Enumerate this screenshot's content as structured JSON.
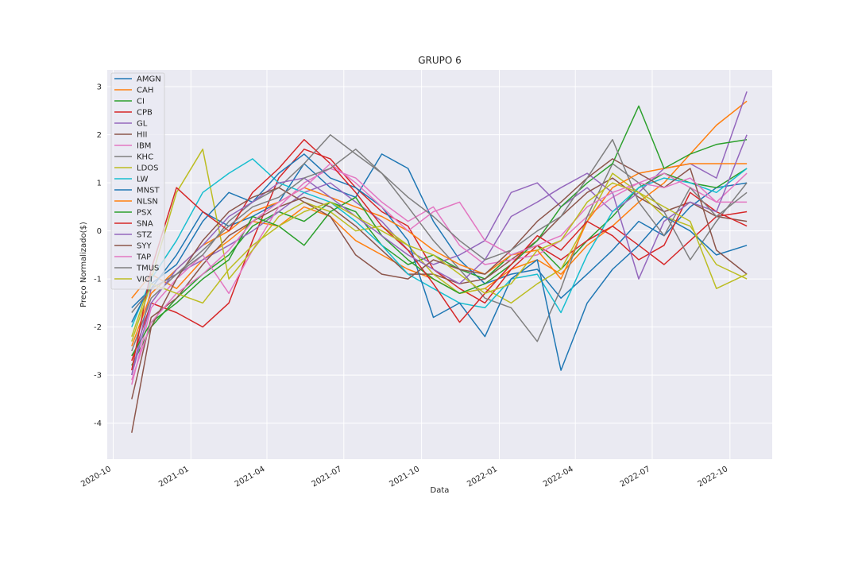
{
  "chart_data": {
    "type": "line",
    "title": "GRUPO 6",
    "xlabel": "Data",
    "ylabel": "Preço Normalizado($)",
    "xlim": [
      "2020-09-24",
      "2022-11-20"
    ],
    "ylim": [
      -4.75,
      3.35
    ],
    "x_ticks": [
      "2020-10",
      "2021-01",
      "2021-04",
      "2021-07",
      "2021-10",
      "2022-01",
      "2022-04",
      "2022-07",
      "2022-10"
    ],
    "x_tick_dates": [
      "2020-10-01",
      "2021-01-01",
      "2021-04-01",
      "2021-07-01",
      "2021-10-01",
      "2022-01-01",
      "2022-04-01",
      "2022-07-01",
      "2022-10-01"
    ],
    "y_ticks": [
      -4,
      -3,
      -2,
      -1,
      0,
      1,
      2,
      3
    ],
    "grid": true,
    "legend_position": "upper-left",
    "style": {
      "background": "#eaeaf2",
      "grid_color": "#ffffff"
    },
    "x": [
      "2020-10-23",
      "2020-11-15",
      "2020-12-15",
      "2021-01-15",
      "2021-02-15",
      "2021-03-15",
      "2021-04-15",
      "2021-05-15",
      "2021-06-15",
      "2021-07-15",
      "2021-08-15",
      "2021-09-15",
      "2021-10-15",
      "2021-11-15",
      "2021-12-15",
      "2022-01-15",
      "2022-02-15",
      "2022-03-15",
      "2022-04-15",
      "2022-05-15",
      "2022-06-15",
      "2022-07-15",
      "2022-08-15",
      "2022-09-15",
      "2022-10-21"
    ],
    "series": [
      {
        "name": "AMGN",
        "color": "#1f77b4",
        "values": [
          -1.6,
          -1.2,
          -0.5,
          0.4,
          0.1,
          0.3,
          0.6,
          1.4,
          0.9,
          0.7,
          1.6,
          1.3,
          0.2,
          -0.6,
          -1.1,
          -0.9,
          -0.8,
          -1.4,
          -0.9,
          -0.4,
          0.2,
          -0.1,
          0.5,
          0.9,
          1.0
        ]
      },
      {
        "name": "CAH",
        "color": "#ff7f0e",
        "values": [
          -1.4,
          -0.9,
          -1.2,
          -0.6,
          -0.2,
          0.2,
          0.1,
          0.5,
          0.3,
          -0.2,
          -0.5,
          -0.8,
          -1.0,
          -1.3,
          -1.2,
          -0.8,
          -0.6,
          -0.9,
          -0.3,
          0.1,
          0.6,
          1.0,
          1.6,
          2.2,
          2.7
        ]
      },
      {
        "name": "CI",
        "color": "#2ca02c",
        "values": [
          -2.8,
          -2.0,
          -1.4,
          -0.9,
          -0.5,
          0.1,
          0.4,
          0.2,
          0.6,
          0.4,
          -0.3,
          -0.7,
          -0.5,
          -0.8,
          -1.0,
          -0.5,
          -0.3,
          -0.8,
          -0.2,
          0.3,
          0.9,
          1.2,
          1.0,
          0.9,
          1.3
        ]
      },
      {
        "name": "CPB",
        "color": "#d62728",
        "values": [
          -2.7,
          -1.5,
          -1.7,
          -2.0,
          -1.5,
          -0.2,
          1.1,
          1.7,
          1.5,
          0.9,
          0.4,
          0.1,
          -0.8,
          -1.2,
          -1.5,
          -0.8,
          -0.3,
          -0.6,
          -0.2,
          0.1,
          -0.3,
          -0.7,
          -0.2,
          0.3,
          0.4
        ]
      },
      {
        "name": "GL",
        "color": "#9467bd",
        "values": [
          -3.0,
          -1.2,
          -0.9,
          -0.6,
          -0.3,
          0.0,
          0.4,
          0.8,
          1.0,
          0.6,
          0.2,
          -0.4,
          -0.7,
          -0.5,
          -0.2,
          0.8,
          1.0,
          0.5,
          0.9,
          0.4,
          0.8,
          1.3,
          1.4,
          1.1,
          2.9
        ]
      },
      {
        "name": "HII",
        "color": "#8c564b",
        "values": [
          -3.5,
          -1.8,
          -1.4,
          -0.7,
          -0.1,
          0.2,
          0.5,
          0.7,
          0.5,
          0.1,
          -0.4,
          -0.9,
          -0.9,
          -1.1,
          -1.0,
          -0.6,
          -0.2,
          0.3,
          0.8,
          1.1,
          0.7,
          0.4,
          0.6,
          0.3,
          0.2
        ]
      },
      {
        "name": "IBM",
        "color": "#e377c2",
        "values": [
          -3.2,
          -1.6,
          -1.0,
          -0.5,
          -1.3,
          -0.4,
          0.5,
          1.0,
          1.3,
          1.1,
          0.6,
          0.2,
          0.5,
          -0.3,
          -0.7,
          -0.6,
          -0.5,
          -0.2,
          0.3,
          0.7,
          1.0,
          1.2,
          0.9,
          0.6,
          1.2
        ]
      },
      {
        "name": "KHC",
        "color": "#7f7f7f",
        "values": [
          -2.5,
          -1.4,
          -0.9,
          -0.5,
          0.2,
          0.6,
          0.9,
          1.4,
          2.0,
          1.6,
          1.2,
          0.5,
          -0.2,
          -0.8,
          -1.4,
          -1.6,
          -2.3,
          -1.2,
          0.3,
          1.4,
          1.0,
          0.4,
          -0.6,
          0.2,
          1.0
        ]
      },
      {
        "name": "LDOS",
        "color": "#bcbd22",
        "values": [
          -2.2,
          -1.0,
          0.8,
          1.7,
          -1.0,
          -0.4,
          0.3,
          0.6,
          0.4,
          0.0,
          0.1,
          -0.3,
          -0.9,
          -1.3,
          -1.2,
          -1.5,
          -1.1,
          -0.8,
          0.2,
          1.2,
          0.8,
          0.3,
          0.1,
          -0.7,
          -1.0
        ]
      },
      {
        "name": "LW",
        "color": "#17becf",
        "values": [
          -2.0,
          -1.0,
          -0.2,
          0.8,
          1.2,
          1.5,
          1.0,
          0.8,
          0.6,
          0.2,
          -0.3,
          -0.9,
          -1.2,
          -1.5,
          -1.6,
          -1.0,
          -0.9,
          -1.7,
          -0.5,
          0.4,
          0.9,
          1.1,
          1.0,
          0.8,
          1.3
        ]
      },
      {
        "name": "MNST",
        "color": "#1f77b4",
        "values": [
          -1.9,
          -1.1,
          -0.7,
          0.2,
          0.8,
          0.6,
          1.2,
          1.6,
          1.1,
          0.9,
          0.5,
          -0.2,
          -1.8,
          -1.5,
          -2.2,
          -1.0,
          -0.6,
          -2.9,
          -1.5,
          -0.8,
          -0.3,
          0.3,
          0.0,
          -0.5,
          -0.3
        ]
      },
      {
        "name": "NLSN",
        "color": "#ff7f0e",
        "values": [
          -2.4,
          -1.3,
          -0.8,
          -0.3,
          0.0,
          0.4,
          0.6,
          0.9,
          0.7,
          0.5,
          0.3,
          0.0,
          -0.4,
          -0.7,
          -0.9,
          -0.5,
          -0.4,
          -1.0,
          0.2,
          0.9,
          1.2,
          1.3,
          1.4,
          1.4,
          1.4
        ]
      },
      {
        "name": "PSX",
        "color": "#2ca02c",
        "values": [
          -2.6,
          -1.9,
          -1.5,
          -1.0,
          -0.6,
          0.3,
          0.1,
          -0.3,
          0.4,
          0.7,
          -0.1,
          -0.6,
          -1.0,
          -1.3,
          -1.1,
          -0.7,
          -0.2,
          0.5,
          1.0,
          1.4,
          2.6,
          1.3,
          1.6,
          1.8,
          1.9
        ]
      },
      {
        "name": "SNA",
        "color": "#d62728",
        "values": [
          -2.9,
          -0.8,
          0.9,
          0.4,
          0.0,
          0.8,
          1.3,
          1.9,
          1.4,
          0.8,
          0.1,
          -0.4,
          -1.1,
          -1.9,
          -1.3,
          -0.7,
          -0.1,
          -0.4,
          0.2,
          -0.1,
          -0.6,
          -0.3,
          0.8,
          0.4,
          0.1
        ]
      },
      {
        "name": "STZ",
        "color": "#9467bd",
        "values": [
          -3.0,
          -1.5,
          -0.8,
          -0.3,
          0.3,
          0.6,
          1.0,
          1.1,
          0.7,
          0.3,
          -0.1,
          -0.5,
          -0.8,
          -1.1,
          -0.6,
          0.3,
          0.6,
          0.9,
          1.2,
          0.8,
          -1.0,
          0.2,
          0.6,
          0.4,
          2.0
        ]
      },
      {
        "name": "SYY",
        "color": "#8c564b",
        "values": [
          -4.2,
          -2.0,
          -1.0,
          -0.2,
          0.4,
          0.7,
          0.9,
          0.6,
          0.3,
          -0.5,
          -0.9,
          -1.0,
          -0.6,
          -0.8,
          -0.9,
          -0.4,
          0.2,
          0.6,
          1.1,
          1.5,
          1.2,
          0.9,
          1.3,
          -0.4,
          -0.9
        ]
      },
      {
        "name": "TAP",
        "color": "#e377c2",
        "values": [
          -3.1,
          -1.9,
          -1.3,
          -0.9,
          -0.4,
          0.2,
          0.6,
          0.9,
          1.4,
          1.0,
          0.5,
          0.0,
          0.4,
          0.6,
          -0.2,
          -0.5,
          -0.3,
          -0.1,
          0.5,
          0.8,
          1.0,
          0.9,
          1.1,
          0.6,
          0.6
        ]
      },
      {
        "name": "TMUS",
        "color": "#7f7f7f",
        "values": [
          -1.7,
          -1.2,
          -0.9,
          -0.4,
          0.1,
          0.5,
          0.7,
          1.1,
          1.3,
          1.7,
          1.2,
          0.7,
          0.3,
          -0.2,
          -0.6,
          -0.4,
          0.0,
          0.3,
          1.1,
          1.9,
          0.6,
          -0.1,
          0.9,
          0.3,
          0.8
        ]
      },
      {
        "name": "VICI",
        "color": "#bcbd22",
        "values": [
          -2.3,
          -1.1,
          -1.3,
          -1.5,
          -0.8,
          -0.3,
          0.1,
          0.4,
          0.6,
          0.3,
          0.0,
          -0.3,
          -0.5,
          -0.9,
          -1.3,
          -1.1,
          -0.4,
          -0.2,
          0.6,
          1.0,
          0.8,
          0.5,
          0.2,
          -1.2,
          -0.9
        ]
      }
    ]
  }
}
